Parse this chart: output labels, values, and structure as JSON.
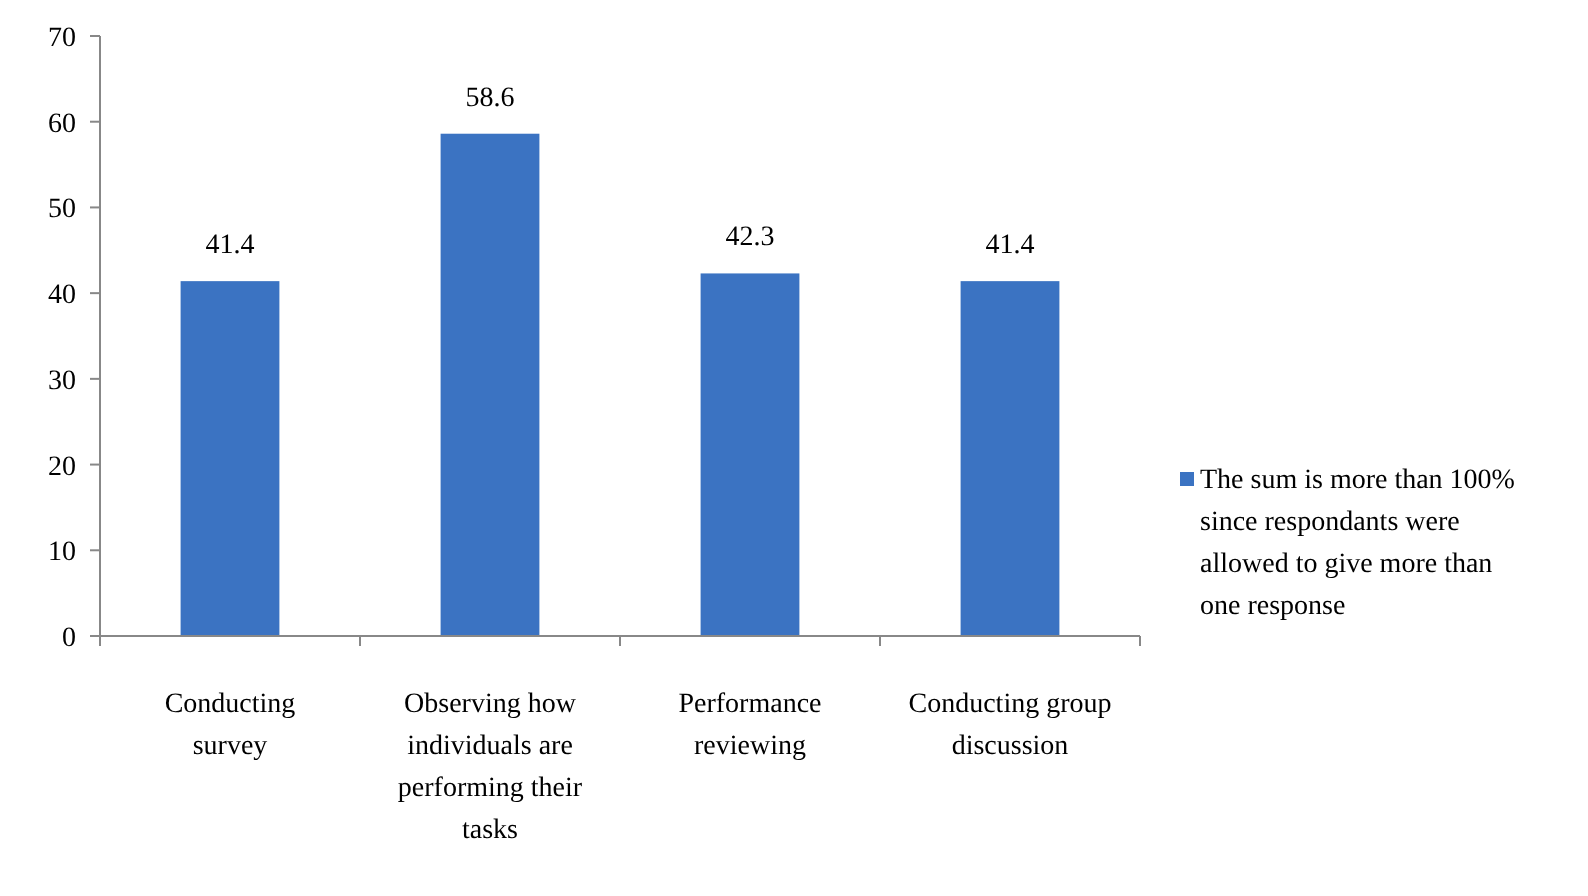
{
  "chart_data": {
    "type": "bar",
    "categories": [
      "Conducting survey",
      "Observing how individuals are performing their tasks",
      "Performance reviewing",
      "Conducting group discussion"
    ],
    "series": [
      {
        "name": "The sum is more than 100% since respondants were allowed to give more than one response",
        "color": "#3b73c2",
        "values": [
          41.4,
          58.6,
          42.3,
          41.4
        ]
      }
    ],
    "ylim": [
      0,
      70
    ],
    "yticks": [
      0,
      10,
      20,
      30,
      40,
      50,
      60,
      70
    ],
    "data_labels": true,
    "grid": false,
    "legend": "right"
  }
}
